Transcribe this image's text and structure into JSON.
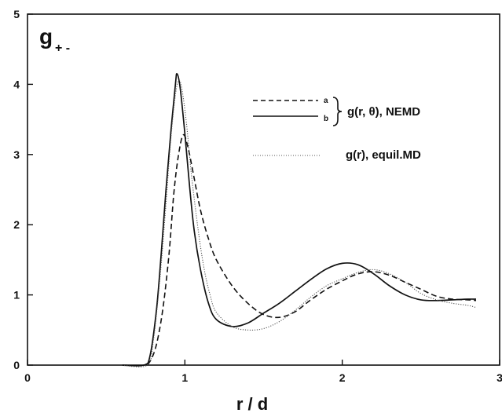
{
  "chart_data": {
    "type": "line",
    "title": "",
    "panel_label": "g",
    "panel_label_sub": "+ -",
    "xlabel": "r / d",
    "ylabel": "",
    "xlim": [
      0,
      3
    ],
    "ylim": [
      0,
      5
    ],
    "xticks": [
      "0",
      "1",
      "2",
      "3"
    ],
    "yticks": [
      "0",
      "1",
      "2",
      "3",
      "4",
      "5"
    ],
    "grid": false,
    "legend": {
      "placement": "top-right",
      "marker_a": "a",
      "marker_b": "b",
      "group_label": "g(r, θ), NEMD",
      "equil_label": "g(r),   equil.MD"
    },
    "series": [
      {
        "name": "a",
        "style": "dashed",
        "x": [
          0.6,
          0.74,
          0.78,
          0.82,
          0.86,
          0.9,
          0.93,
          0.96,
          0.99,
          1.02,
          1.06,
          1.1,
          1.15,
          1.2,
          1.3,
          1.4,
          1.5,
          1.6,
          1.7,
          1.8,
          1.9,
          2.0,
          2.1,
          2.2,
          2.3,
          2.4,
          2.5,
          2.6,
          2.7,
          2.8,
          2.85
        ],
        "y": [
          0.0,
          0.0,
          0.06,
          0.3,
          0.8,
          1.6,
          2.45,
          3.0,
          3.28,
          3.1,
          2.65,
          2.2,
          1.8,
          1.5,
          1.13,
          0.88,
          0.72,
          0.68,
          0.76,
          0.93,
          1.08,
          1.2,
          1.3,
          1.33,
          1.28,
          1.18,
          1.08,
          0.98,
          0.94,
          0.93,
          0.92
        ]
      },
      {
        "name": "b",
        "style": "solid",
        "x": [
          0.6,
          0.74,
          0.78,
          0.82,
          0.85,
          0.88,
          0.91,
          0.94,
          0.95,
          0.97,
          1.0,
          1.03,
          1.06,
          1.1,
          1.15,
          1.2,
          1.3,
          1.4,
          1.5,
          1.6,
          1.7,
          1.8,
          1.9,
          2.0,
          2.1,
          2.2,
          2.3,
          2.4,
          2.5,
          2.6,
          2.7,
          2.8,
          2.85
        ],
        "y": [
          0.0,
          0.0,
          0.15,
          0.8,
          1.6,
          2.5,
          3.3,
          4.0,
          4.15,
          3.95,
          3.3,
          2.55,
          1.9,
          1.35,
          0.88,
          0.65,
          0.55,
          0.6,
          0.74,
          0.88,
          1.05,
          1.22,
          1.37,
          1.45,
          1.43,
          1.3,
          1.13,
          1.0,
          0.93,
          0.92,
          0.93,
          0.94,
          0.94
        ]
      },
      {
        "name": "g(r), equil.MD",
        "style": "dotted",
        "x": [
          0.6,
          0.76,
          0.8,
          0.84,
          0.88,
          0.91,
          0.94,
          0.96,
          0.98,
          1.01,
          1.04,
          1.08,
          1.12,
          1.16,
          1.2,
          1.3,
          1.4,
          1.5,
          1.6,
          1.7,
          1.8,
          1.9,
          2.0,
          2.1,
          2.2,
          2.3,
          2.4,
          2.5,
          2.6,
          2.7,
          2.8,
          2.85
        ],
        "y": [
          0.0,
          0.0,
          0.35,
          1.2,
          2.3,
          3.2,
          3.85,
          4.05,
          3.95,
          3.45,
          2.75,
          2.0,
          1.4,
          1.0,
          0.75,
          0.55,
          0.5,
          0.52,
          0.62,
          0.78,
          0.97,
          1.13,
          1.23,
          1.32,
          1.36,
          1.3,
          1.18,
          1.02,
          0.93,
          0.88,
          0.85,
          0.82
        ]
      }
    ]
  }
}
